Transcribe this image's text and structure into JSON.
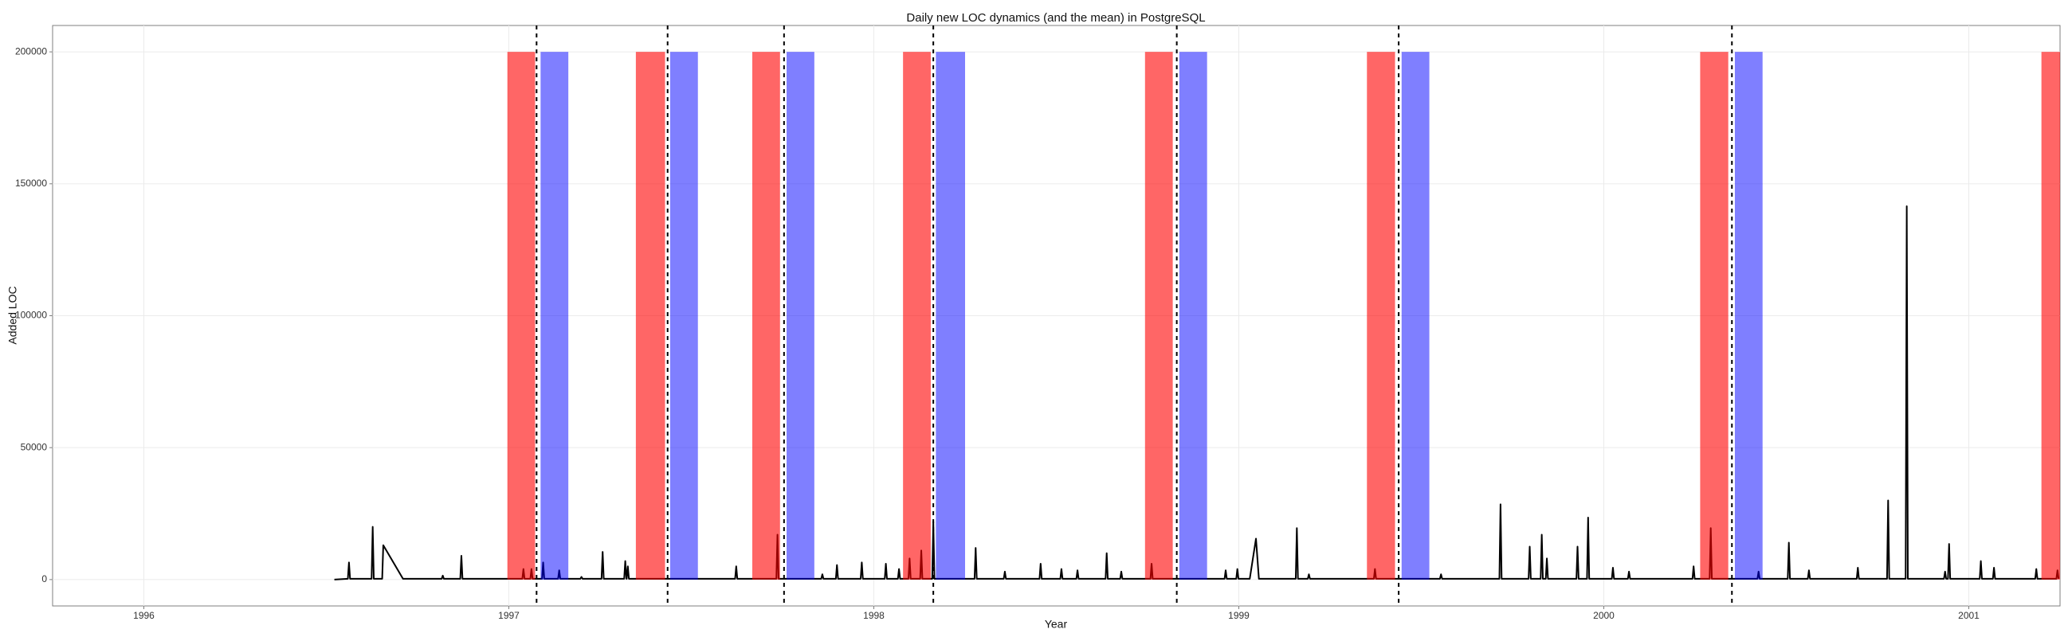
{
  "chart_data": {
    "type": "line",
    "title": "Daily new LOC dynamics (and the mean) in PostgreSQL",
    "x_label": "Year",
    "y_label": "Added LOC",
    "xlim": [
      1995.75,
      2001.25
    ],
    "ylim": [
      -10000,
      210000
    ],
    "xticks": [
      1996,
      1997,
      1998,
      1999,
      2000,
      2001
    ],
    "yticks": [
      0,
      50000,
      100000,
      150000,
      200000
    ],
    "grid": true,
    "x": [
      1996.522,
      1996.559,
      1996.562,
      1996.565,
      1996.624,
      1996.627,
      1996.63,
      1996.653,
      1996.656,
      1996.71,
      1996.816,
      1996.819,
      1996.822,
      1996.867,
      1996.87,
      1996.873,
      1997.037,
      1997.04,
      1997.043,
      1997.059,
      1997.062,
      1997.065,
      1997.091,
      1997.094,
      1997.097,
      1997.135,
      1997.138,
      1997.141,
      1997.196,
      1997.199,
      1997.202,
      1997.254,
      1997.257,
      1997.26,
      1997.316,
      1997.319,
      1997.322,
      1997.323,
      1997.326,
      1997.329,
      1997.62,
      1997.623,
      1997.626,
      1997.733,
      1997.736,
      1997.739,
      1997.856,
      1997.859,
      1997.862,
      1997.896,
      1997.899,
      1997.902,
      1997.964,
      1997.967,
      1997.97,
      1998.03,
      1998.033,
      1998.036,
      1998.066,
      1998.069,
      1998.072,
      1998.095,
      1998.098,
      1998.101,
      1998.127,
      1998.13,
      1998.133,
      1998.16,
      1998.163,
      1998.166,
      1998.276,
      1998.279,
      1998.282,
      1998.356,
      1998.359,
      1998.362,
      1998.454,
      1998.457,
      1998.46,
      1998.511,
      1998.514,
      1998.517,
      1998.555,
      1998.558,
      1998.561,
      1998.635,
      1998.638,
      1998.641,
      1998.675,
      1998.678,
      1998.681,
      1998.758,
      1998.761,
      1998.764,
      1998.961,
      1998.964,
      1998.967,
      1998.993,
      1998.996,
      1998.999,
      1999.03,
      1999.047,
      1999.055,
      1999.156,
      1999.159,
      1999.162,
      1999.189,
      1999.192,
      1999.195,
      1999.37,
      1999.373,
      1999.376,
      1999.551,
      1999.554,
      1999.557,
      1999.714,
      1999.717,
      1999.72,
      1999.794,
      1999.797,
      1999.8,
      1999.827,
      1999.83,
      1999.833,
      1999.841,
      1999.844,
      1999.847,
      1999.925,
      1999.928,
      1999.931,
      1999.954,
      1999.957,
      1999.96,
      2000.022,
      2000.025,
      2000.028,
      2000.066,
      2000.069,
      2000.072,
      2000.243,
      2000.246,
      2000.249,
      2000.29,
      2000.293,
      2000.296,
      2000.421,
      2000.424,
      2000.427,
      2000.504,
      2000.507,
      2000.51,
      2000.559,
      2000.562,
      2000.565,
      2000.693,
      2000.696,
      2000.699,
      2000.776,
      2000.779,
      2000.782,
      2000.827,
      2000.83,
      2000.833,
      2000.932,
      2000.935,
      2000.938,
      2000.943,
      2000.946,
      2000.949,
      2001.03,
      2001.033,
      2001.036,
      2001.066,
      2001.069,
      2001.072,
      2001.182,
      2001.185,
      2001.188,
      2001.24,
      2001.243,
      2001.246
    ],
    "series": [
      {
        "color": "#000000",
        "values": [
          0,
          300,
          6500,
          300,
          300,
          20000,
          300,
          300,
          13000,
          300,
          300,
          1500,
          300,
          300,
          9000,
          300,
          300,
          4000,
          300,
          300,
          4000,
          300,
          300,
          6500,
          300,
          300,
          3500,
          300,
          300,
          1000,
          300,
          300,
          10500,
          300,
          300,
          7000,
          300,
          300,
          5000,
          300,
          300,
          5000,
          300,
          300,
          17000,
          300,
          300,
          2000,
          300,
          300,
          5500,
          300,
          300,
          6500,
          300,
          300,
          6000,
          300,
          300,
          4000,
          300,
          300,
          8000,
          300,
          300,
          11000,
          300,
          300,
          22000,
          300,
          300,
          12000,
          300,
          300,
          3000,
          300,
          300,
          6000,
          300,
          300,
          4000,
          300,
          300,
          3500,
          300,
          300,
          10000,
          300,
          300,
          3000,
          300,
          300,
          6000,
          300,
          300,
          3500,
          300,
          300,
          4000,
          300,
          300,
          15500,
          300,
          300,
          19500,
          300,
          300,
          2000,
          300,
          300,
          4000,
          300,
          300,
          2000,
          300,
          300,
          28500,
          300,
          300,
          12500,
          300,
          300,
          17000,
          300,
          300,
          8000,
          300,
          300,
          12500,
          300,
          300,
          23500,
          300,
          300,
          4500,
          300,
          300,
          3000,
          300,
          300,
          5000,
          300,
          300,
          19500,
          300,
          300,
          3000,
          300,
          300,
          14000,
          300,
          300,
          3500,
          300,
          300,
          4500,
          300,
          300,
          30000,
          300,
          300,
          141500,
          300,
          300,
          3000,
          300,
          300,
          13500,
          300,
          300,
          7000,
          300,
          300,
          4500,
          300,
          300,
          4000,
          300,
          300,
          3500,
          300
        ]
      }
    ],
    "band_y": [
      0,
      200000
    ],
    "bands": [
      {
        "color": "#ff0000",
        "opacity": 0.6,
        "ranges": [
          [
            1996.996,
            1997.072
          ],
          [
            1997.348,
            1997.428
          ],
          [
            1997.667,
            1997.743
          ],
          [
            1998.08,
            1998.156
          ],
          [
            1998.743,
            1998.819
          ],
          [
            1999.351,
            1999.428
          ],
          [
            2000.264,
            2000.341
          ],
          [
            2001.199,
            2001.275
          ]
        ]
      },
      {
        "color": "#0000ff",
        "opacity": 0.5,
        "ranges": [
          [
            1997.087,
            1997.163
          ],
          [
            1997.442,
            1997.518
          ],
          [
            1997.761,
            1997.837
          ],
          [
            1998.17,
            1998.25
          ],
          [
            1998.837,
            1998.913
          ],
          [
            1999.446,
            1999.522
          ],
          [
            2000.359,
            2000.435
          ]
        ]
      }
    ],
    "releases": [
      1997.076,
      1997.435,
      1997.754,
      1998.163,
      1998.83,
      1999.438,
      2000.351
    ]
  }
}
